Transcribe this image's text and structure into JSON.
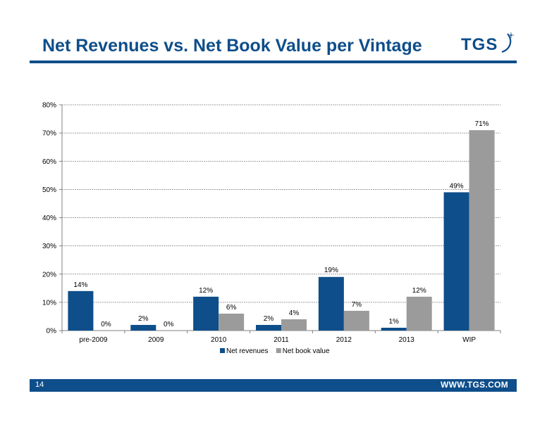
{
  "header": {
    "title": "Net Revenues vs. Net Book Value per Vintage",
    "logo_text": "TGS"
  },
  "footer": {
    "page_number": "14",
    "url": "WWW.TGS.COM"
  },
  "colors": {
    "accent": "#0e4e8a",
    "net_revenues": "#0e4e8a",
    "net_book_value": "#9b9b9b",
    "grid": "#808080"
  },
  "chart_data": {
    "type": "bar",
    "title": "",
    "xlabel": "",
    "ylabel": "",
    "categories": [
      "pre-2009",
      "2009",
      "2010",
      "2011",
      "2012",
      "2013",
      "WIP"
    ],
    "series": [
      {
        "name": "Net revenues",
        "values": [
          14,
          2,
          12,
          2,
          19,
          1,
          49
        ]
      },
      {
        "name": "Net book value",
        "values": [
          0,
          0,
          6,
          4,
          7,
          12,
          71
        ]
      }
    ],
    "ylim": [
      0,
      80
    ],
    "yticks": [
      0,
      10,
      20,
      30,
      40,
      50,
      60,
      70,
      80
    ],
    "ytick_format": "%",
    "data_labels": true,
    "grid": true,
    "legend_position": "bottom"
  }
}
